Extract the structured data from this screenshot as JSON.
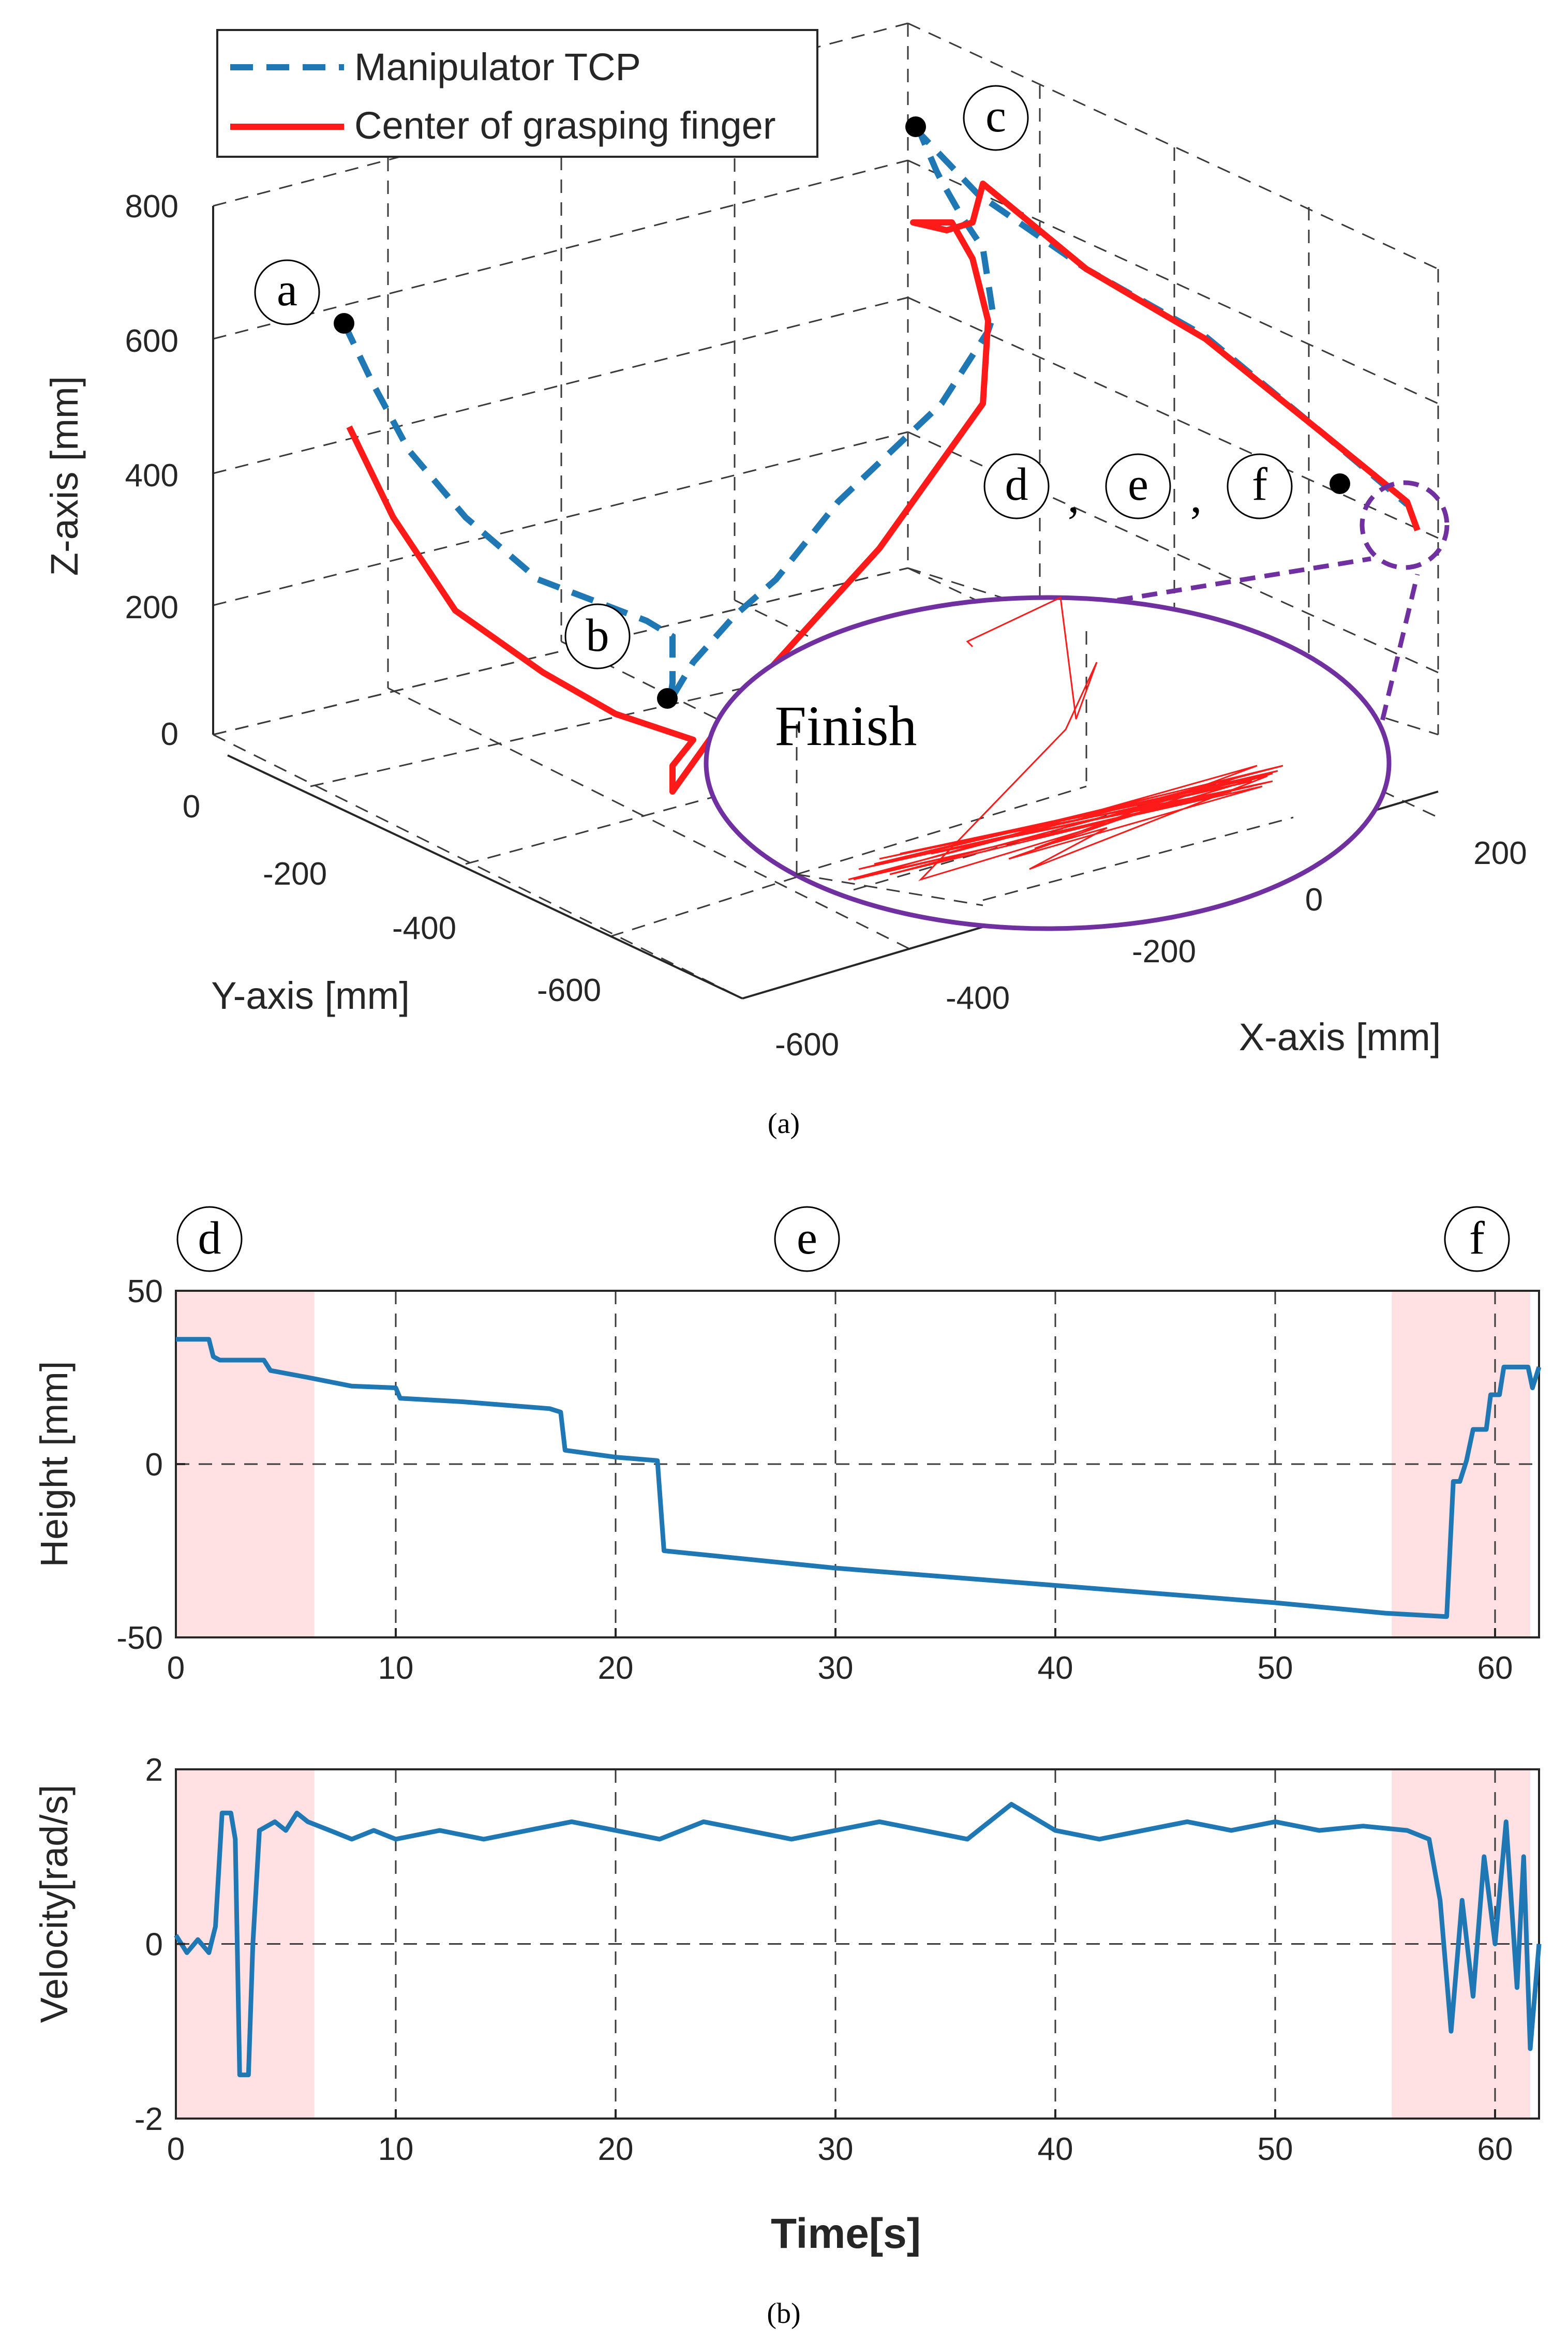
{
  "figure": {
    "panel_a_caption": "(a)",
    "panel_b_caption": "(b)"
  },
  "chart_data": [
    {
      "type": "line",
      "subtype": "3d-trajectory",
      "title": "",
      "xlabel": "X-axis [mm]",
      "ylabel": "Y-axis [mm]",
      "zlabel": "Z-axis [mm]",
      "xticks": [
        "-600",
        "-400",
        "-200",
        "0",
        "200"
      ],
      "yticks": [
        "0",
        "-200",
        "-400",
        "-600"
      ],
      "zticks": [
        "0",
        "200",
        "400",
        "600",
        "800"
      ],
      "legend": {
        "position": "top-left",
        "entries": [
          "Manipulator TCP",
          "Center of grasping finger"
        ]
      },
      "series": [
        {
          "name": "Manipulator TCP",
          "color": "#1f77b4",
          "style": "dashed"
        },
        {
          "name": "Center of grasping finger",
          "color": "#ff1a1a",
          "style": "solid"
        }
      ],
      "annotations": {
        "a": "a",
        "b": "b",
        "c": "c",
        "d": "d",
        "e": "e",
        "f": "f",
        "sep1": ",",
        "sep2": ",",
        "finish": "Finish"
      },
      "inset": {
        "description_color": "#7030a0"
      }
    },
    {
      "type": "line",
      "title": "",
      "xlabel": "",
      "ylabel": "Height [mm]",
      "xlim": [
        0,
        62
      ],
      "ylim": [
        -50,
        50
      ],
      "xticks": [
        "0",
        "10",
        "20",
        "30",
        "40",
        "50",
        "60"
      ],
      "yticks": [
        "-50",
        "0",
        "50"
      ],
      "phases": {
        "d": "d",
        "e": "e",
        "f": "f"
      },
      "shaded_regions": [
        [
          0,
          6.3
        ],
        [
          55.3,
          61.6
        ]
      ],
      "series": [
        {
          "name": "Height",
          "color": "#1f77b4",
          "points": [
            [
              0,
              36
            ],
            [
              1.5,
              36
            ],
            [
              1.7,
              31
            ],
            [
              2,
              30
            ],
            [
              4,
              30
            ],
            [
              4.3,
              27
            ],
            [
              6,
              25
            ],
            [
              8,
              22.5
            ],
            [
              10,
              22
            ],
            [
              10.2,
              19
            ],
            [
              13,
              18
            ],
            [
              17,
              16
            ],
            [
              17.5,
              15
            ],
            [
              17.7,
              4
            ],
            [
              20,
              2
            ],
            [
              21.9,
              1
            ],
            [
              22.2,
              -25
            ],
            [
              30,
              -30
            ],
            [
              40,
              -35
            ],
            [
              50,
              -40
            ],
            [
              55,
              -43
            ],
            [
              57.8,
              -44
            ],
            [
              58.1,
              -5
            ],
            [
              58.4,
              -5
            ],
            [
              58.7,
              1
            ],
            [
              59,
              10
            ],
            [
              59.6,
              10
            ],
            [
              59.8,
              20
            ],
            [
              60.2,
              20
            ],
            [
              60.4,
              28
            ],
            [
              61.5,
              28
            ],
            [
              61.7,
              22
            ],
            [
              62,
              28
            ]
          ]
        }
      ]
    },
    {
      "type": "line",
      "title": "",
      "xlabel": "Time[s]",
      "ylabel": "Velocity[rad/s]",
      "xlim": [
        0,
        62
      ],
      "ylim": [
        -2,
        2
      ],
      "xticks": [
        "0",
        "10",
        "20",
        "30",
        "40",
        "50",
        "60"
      ],
      "yticks": [
        "-2",
        "0",
        "2"
      ],
      "shaded_regions": [
        [
          0,
          6.3
        ],
        [
          55.3,
          61.6
        ]
      ],
      "series": [
        {
          "name": "Velocity",
          "color": "#1f77b4",
          "points": [
            [
              0,
              0.1
            ],
            [
              0.5,
              -0.1
            ],
            [
              1,
              0.05
            ],
            [
              1.5,
              -0.1
            ],
            [
              1.8,
              0.2
            ],
            [
              2.1,
              1.5
            ],
            [
              2.5,
              1.5
            ],
            [
              2.7,
              1.2
            ],
            [
              2.9,
              -1.5
            ],
            [
              3.3,
              -1.5
            ],
            [
              3.5,
              0
            ],
            [
              3.8,
              1.3
            ],
            [
              4.5,
              1.4
            ],
            [
              5,
              1.3
            ],
            [
              5.5,
              1.5
            ],
            [
              6,
              1.4
            ],
            [
              7,
              1.3
            ],
            [
              8,
              1.2
            ],
            [
              9,
              1.3
            ],
            [
              10,
              1.2
            ],
            [
              12,
              1.3
            ],
            [
              14,
              1.2
            ],
            [
              16,
              1.3
            ],
            [
              18,
              1.4
            ],
            [
              20,
              1.3
            ],
            [
              22,
              1.2
            ],
            [
              24,
              1.4
            ],
            [
              26,
              1.3
            ],
            [
              28,
              1.2
            ],
            [
              30,
              1.3
            ],
            [
              32,
              1.4
            ],
            [
              34,
              1.3
            ],
            [
              36,
              1.2
            ],
            [
              38,
              1.6
            ],
            [
              40,
              1.3
            ],
            [
              42,
              1.2
            ],
            [
              44,
              1.3
            ],
            [
              46,
              1.4
            ],
            [
              48,
              1.3
            ],
            [
              50,
              1.4
            ],
            [
              52,
              1.3
            ],
            [
              54,
              1.35
            ],
            [
              56,
              1.3
            ],
            [
              57,
              1.2
            ],
            [
              57.5,
              0.5
            ],
            [
              58,
              -1
            ],
            [
              58.5,
              0.5
            ],
            [
              59,
              -0.6
            ],
            [
              59.5,
              1
            ],
            [
              60,
              0
            ],
            [
              60.5,
              1.4
            ],
            [
              61,
              -0.5
            ],
            [
              61.3,
              1
            ],
            [
              61.6,
              -1.2
            ],
            [
              62,
              0
            ]
          ]
        }
      ]
    }
  ]
}
